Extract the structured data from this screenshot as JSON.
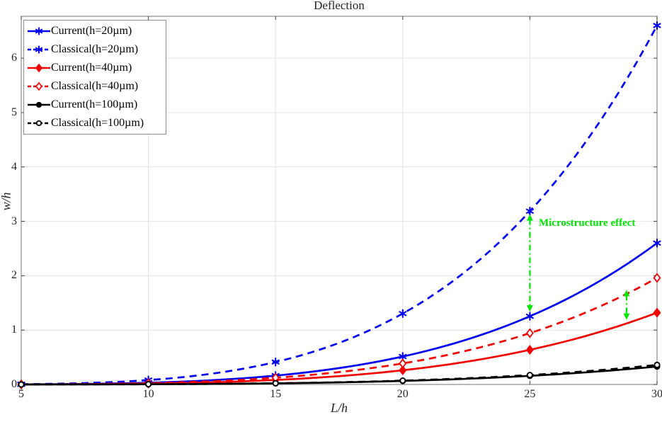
{
  "figure": {
    "background": "#ffffff"
  },
  "chart_data": {
    "type": "line",
    "title": "Deflection",
    "xlabel": "L/h",
    "ylabel": "w/h",
    "xlim": [
      5,
      30
    ],
    "ylim": [
      0,
      6.77
    ],
    "xticks": [
      5,
      10,
      15,
      20,
      25,
      30
    ],
    "yticks": [
      0,
      1,
      2,
      3,
      4,
      5,
      6
    ],
    "grid": true,
    "legend_position": "top-left",
    "x": [
      5,
      10,
      15,
      20,
      25,
      30
    ],
    "series": [
      {
        "name": "Current(h=20µm)",
        "color": "#0000f5",
        "style": "solid",
        "marker": "star",
        "values": [
          0.002,
          0.032,
          0.163,
          0.514,
          1.254,
          2.6
        ]
      },
      {
        "name": "Classical(h=20µm)",
        "color": "#0000f5",
        "style": "dashed",
        "marker": "star",
        "values": [
          0.005,
          0.081,
          0.413,
          1.304,
          3.186,
          6.6
        ]
      },
      {
        "name": "Current(h=40µm)",
        "color": "#f50000",
        "style": "solid",
        "marker": "diamond",
        "values": [
          0.001,
          0.016,
          0.083,
          0.261,
          0.637,
          1.32
        ]
      },
      {
        "name": "Classical(h=40µm)",
        "color": "#f50000",
        "style": "dashed",
        "marker": "diamond-open",
        "values": [
          0.0015,
          0.024,
          0.124,
          0.387,
          0.944,
          1.96
        ]
      },
      {
        "name": "Current(h=100µm)",
        "color": "#000000",
        "style": "solid",
        "marker": "circle",
        "values": [
          0.0003,
          0.004,
          0.021,
          0.065,
          0.159,
          0.33
        ]
      },
      {
        "name": "Classical(h=100µm)",
        "color": "#000000",
        "style": "dashed",
        "marker": "circle-open",
        "values": [
          0.0004,
          0.0044,
          0.0225,
          0.0711,
          0.1736,
          0.36
        ]
      }
    ],
    "annotations": {
      "label": {
        "text": "Microstructure effect",
        "x": 25.35,
        "y": 2.95,
        "color": "#00e400"
      },
      "arrows": [
        {
          "x": 25.0,
          "y1": 1.34,
          "y2": 3.13,
          "color": "#00e400"
        },
        {
          "x": 28.8,
          "y1": 1.19,
          "y2": 1.74,
          "color": "#00e400"
        }
      ]
    },
    "colors": {
      "grid": "#e4e4e4",
      "axis_box": "#8c8c8c",
      "tick": "#404040",
      "tick_label": "#262626"
    }
  }
}
